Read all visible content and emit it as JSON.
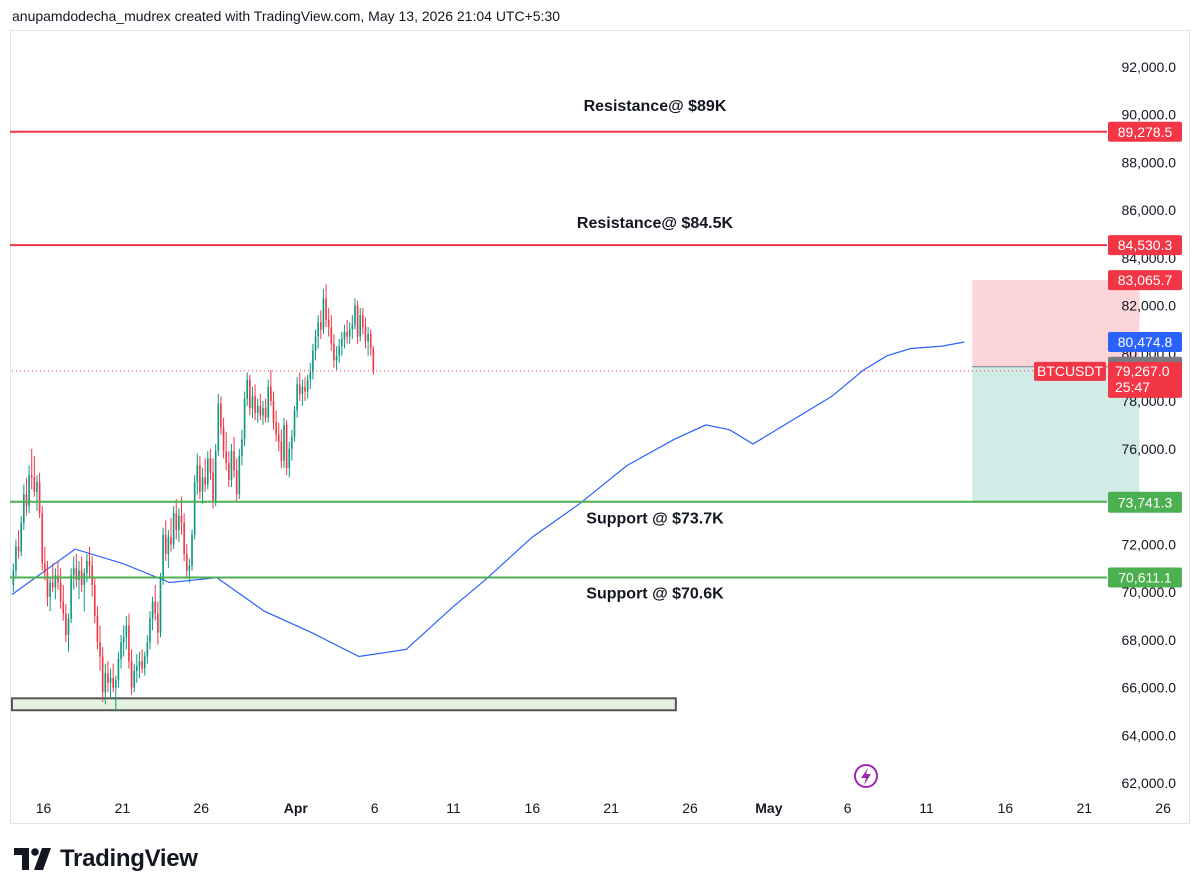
{
  "header": {
    "attribution": "anupamdodecha_mudrex created with TradingView.com, May 13, 2026 21:04 UTC+5:30"
  },
  "footer": {
    "brand": "TradingView"
  },
  "colors": {
    "up": "#089981",
    "down": "#f23645",
    "resistance": "#f23645",
    "support": "#4caf50",
    "ma": "#2962ff",
    "stop_zone": "#fcd5d9",
    "target_zone": "#d1ece6",
    "demand_zone": "#e4f2de"
  },
  "chart_data": {
    "type": "candlestick",
    "symbol": "BTCUSDT",
    "ylim": [
      61500,
      93500
    ],
    "xlim_days": [
      -2,
      67
    ],
    "x_ticks": [
      {
        "label": "16",
        "day": 0
      },
      {
        "label": "21",
        "day": 5
      },
      {
        "label": "26",
        "day": 10
      },
      {
        "label": "Apr",
        "day": 16,
        "bold": true
      },
      {
        "label": "6",
        "day": 21
      },
      {
        "label": "11",
        "day": 26
      },
      {
        "label": "16",
        "day": 31
      },
      {
        "label": "21",
        "day": 36
      },
      {
        "label": "26",
        "day": 41
      },
      {
        "label": "May",
        "day": 46,
        "bold": true
      },
      {
        "label": "6",
        "day": 51
      },
      {
        "label": "11",
        "day": 56
      },
      {
        "label": "16",
        "day": 61
      },
      {
        "label": "21",
        "day": 66
      },
      {
        "label": "26",
        "day": 71
      }
    ],
    "y_ticks": [
      {
        "value": 92000,
        "label": "92,000.0"
      },
      {
        "value": 90000,
        "label": "90,000.0"
      },
      {
        "value": 88000,
        "label": "88,000.0"
      },
      {
        "value": 86000,
        "label": "86,000.0"
      },
      {
        "value": 84000,
        "label": "84,000.0"
      },
      {
        "value": 82000,
        "label": "82,000.0"
      },
      {
        "value": 80000,
        "label": "80,000.0"
      },
      {
        "value": 78000,
        "label": "78,000.0"
      },
      {
        "value": 76000,
        "label": "76,000.0"
      },
      {
        "value": 74000,
        "label": "74,000.0"
      },
      {
        "value": 72000,
        "label": "72,000.0"
      },
      {
        "value": 70000,
        "label": "70,000.0"
      },
      {
        "value": 68000,
        "label": "68,000.0"
      },
      {
        "value": 66000,
        "label": "66,000.0"
      },
      {
        "value": 64000,
        "label": "64,000.0"
      },
      {
        "value": 62000,
        "label": "62,000.0"
      }
    ],
    "horizontal_levels": [
      {
        "name": "Resistance@ $89K",
        "value": 89278.5,
        "label": "89,278.5",
        "color": "#f23645",
        "text_at": 90350
      },
      {
        "name": "Resistance@ $84.5K",
        "value": 84530.3,
        "label": "84,530.3",
        "color": "#f23645",
        "text_at": 85450
      },
      {
        "name": "Support @ $73.7K",
        "value": 73780.9,
        "label": "73,780.9",
        "color": "#4caf50",
        "text_at": 73080
      },
      {
        "name": "Support @ $70.6K",
        "value": 70611.1,
        "label": "70,611.1",
        "color": "#4caf50",
        "text_at": 69930
      }
    ],
    "price_tags": [
      {
        "label": "83,065.7",
        "value": 83065.7,
        "color": "#f23645"
      },
      {
        "label": "80,474.8",
        "value": 80474.8,
        "color": "#2962ff"
      },
      {
        "label": "79,437.7",
        "value": 79437.7,
        "color": "#787b86"
      },
      {
        "label": "73,741.3",
        "value": 73741.3,
        "color": "#4caf50"
      }
    ],
    "last_price": {
      "symbol": "BTCUSDT",
      "label": "79,267.0",
      "value": 79267.0,
      "countdown": "25:47",
      "color": "#f23645"
    },
    "position_tool": {
      "day_start": 58.9,
      "day_end": 69.5,
      "stop": 83065.7,
      "entry": 79437.7,
      "target": 73780.9
    },
    "demand_zone": {
      "day_start": -2,
      "day_end": 40.1,
      "top": 65550,
      "bottom": 65050
    },
    "moving_average": [
      [
        -2.0,
        69900
      ],
      [
        2.0,
        71800
      ],
      [
        5.0,
        71200
      ],
      [
        8.0,
        70400
      ],
      [
        11.0,
        70600
      ],
      [
        14.0,
        69200
      ],
      [
        17.0,
        68300
      ],
      [
        20.0,
        67300
      ],
      [
        23.0,
        67600
      ],
      [
        26.0,
        69400
      ],
      [
        28.0,
        70500
      ],
      [
        31.0,
        72300
      ],
      [
        34.0,
        73700
      ],
      [
        37.0,
        75300
      ],
      [
        40.0,
        76400
      ],
      [
        42.0,
        77000
      ],
      [
        43.5,
        76800
      ],
      [
        45.0,
        76200
      ],
      [
        47.0,
        77000
      ],
      [
        50.0,
        78200
      ],
      [
        52.0,
        79300
      ],
      [
        53.5,
        79900
      ],
      [
        55.0,
        80200
      ],
      [
        57.0,
        80300
      ],
      [
        58.4,
        80474.8
      ]
    ],
    "candles": [
      {
        "o": 70300,
        "h": 71200,
        "l": 70000,
        "c": 70900
      },
      {
        "o": 70900,
        "h": 72200,
        "l": 70600,
        "c": 71900
      },
      {
        "o": 71900,
        "h": 72600,
        "l": 71400,
        "c": 71700
      },
      {
        "o": 71700,
        "h": 73200,
        "l": 71500,
        "c": 72900
      },
      {
        "o": 72900,
        "h": 74500,
        "l": 72600,
        "c": 74100
      },
      {
        "o": 74100,
        "h": 74800,
        "l": 73200,
        "c": 73600
      },
      {
        "o": 73600,
        "h": 75300,
        "l": 73300,
        "c": 74900
      },
      {
        "o": 74900,
        "h": 76000,
        "l": 74300,
        "c": 74800
      },
      {
        "o": 74800,
        "h": 75700,
        "l": 74000,
        "c": 74200
      },
      {
        "o": 74200,
        "h": 74900,
        "l": 73400,
        "c": 74600
      },
      {
        "o": 74600,
        "h": 75000,
        "l": 73100,
        "c": 73300
      },
      {
        "o": 73300,
        "h": 73600,
        "l": 70900,
        "c": 71200
      },
      {
        "o": 71200,
        "h": 71900,
        "l": 70500,
        "c": 70800
      },
      {
        "o": 70800,
        "h": 71300,
        "l": 69400,
        "c": 69800
      },
      {
        "o": 69800,
        "h": 70600,
        "l": 69200,
        "c": 70400
      },
      {
        "o": 70400,
        "h": 71200,
        "l": 70000,
        "c": 70200
      },
      {
        "o": 70200,
        "h": 71000,
        "l": 69700,
        "c": 70700
      },
      {
        "o": 70700,
        "h": 71300,
        "l": 70100,
        "c": 70400
      },
      {
        "o": 70400,
        "h": 71000,
        "l": 69300,
        "c": 69600
      },
      {
        "o": 69600,
        "h": 70300,
        "l": 68800,
        "c": 69100
      },
      {
        "o": 69100,
        "h": 69500,
        "l": 67900,
        "c": 68200
      },
      {
        "o": 68200,
        "h": 69100,
        "l": 67500,
        "c": 68900
      },
      {
        "o": 68900,
        "h": 71000,
        "l": 68700,
        "c": 70700
      },
      {
        "o": 70700,
        "h": 71500,
        "l": 70100,
        "c": 71000
      },
      {
        "o": 71000,
        "h": 71600,
        "l": 70200,
        "c": 70500
      },
      {
        "o": 70500,
        "h": 71300,
        "l": 69700,
        "c": 70900
      },
      {
        "o": 70900,
        "h": 71500,
        "l": 70000,
        "c": 70300
      },
      {
        "o": 70300,
        "h": 71000,
        "l": 69200,
        "c": 70800
      },
      {
        "o": 70800,
        "h": 71600,
        "l": 70400,
        "c": 71300
      },
      {
        "o": 71300,
        "h": 71900,
        "l": 70600,
        "c": 71100
      },
      {
        "o": 71100,
        "h": 71500,
        "l": 69800,
        "c": 70300
      },
      {
        "o": 70300,
        "h": 70600,
        "l": 68700,
        "c": 69000
      },
      {
        "o": 69000,
        "h": 69400,
        "l": 67600,
        "c": 67900
      },
      {
        "o": 67900,
        "h": 68600,
        "l": 66700,
        "c": 67300
      },
      {
        "o": 67300,
        "h": 67700,
        "l": 65400,
        "c": 65800
      },
      {
        "o": 65800,
        "h": 67000,
        "l": 65300,
        "c": 66600
      },
      {
        "o": 66600,
        "h": 67100,
        "l": 65800,
        "c": 66200
      },
      {
        "o": 66200,
        "h": 66800,
        "l": 65600,
        "c": 66400
      },
      {
        "o": 66400,
        "h": 67000,
        "l": 65800,
        "c": 66000
      },
      {
        "o": 66000,
        "h": 66500,
        "l": 65000,
        "c": 66300
      },
      {
        "o": 66300,
        "h": 67500,
        "l": 66000,
        "c": 67200
      },
      {
        "o": 67200,
        "h": 68200,
        "l": 66800,
        "c": 67900
      },
      {
        "o": 67900,
        "h": 68600,
        "l": 67300,
        "c": 68100
      },
      {
        "o": 68100,
        "h": 69000,
        "l": 67600,
        "c": 68600
      },
      {
        "o": 68600,
        "h": 69100,
        "l": 66800,
        "c": 67100
      },
      {
        "o": 67100,
        "h": 67600,
        "l": 65700,
        "c": 66000
      },
      {
        "o": 66000,
        "h": 67000,
        "l": 65800,
        "c": 66700
      },
      {
        "o": 66700,
        "h": 67400,
        "l": 66200,
        "c": 66900
      },
      {
        "o": 66900,
        "h": 67500,
        "l": 66400,
        "c": 67100
      },
      {
        "o": 67100,
        "h": 67600,
        "l": 66600,
        "c": 66800
      },
      {
        "o": 66800,
        "h": 67500,
        "l": 66500,
        "c": 67300
      },
      {
        "o": 67300,
        "h": 68200,
        "l": 67000,
        "c": 67900
      },
      {
        "o": 67900,
        "h": 69200,
        "l": 67600,
        "c": 68900
      },
      {
        "o": 68900,
        "h": 69800,
        "l": 68400,
        "c": 69600
      },
      {
        "o": 69600,
        "h": 70300,
        "l": 68800,
        "c": 69100
      },
      {
        "o": 69100,
        "h": 69600,
        "l": 67800,
        "c": 68300
      },
      {
        "o": 68300,
        "h": 70800,
        "l": 68100,
        "c": 70500
      },
      {
        "o": 70500,
        "h": 72700,
        "l": 70300,
        "c": 72400
      },
      {
        "o": 72400,
        "h": 73000,
        "l": 71300,
        "c": 71600
      },
      {
        "o": 71600,
        "h": 72600,
        "l": 71000,
        "c": 72300
      },
      {
        "o": 72300,
        "h": 73100,
        "l": 71700,
        "c": 72000
      },
      {
        "o": 72000,
        "h": 73600,
        "l": 71800,
        "c": 73300
      },
      {
        "o": 73300,
        "h": 73900,
        "l": 72200,
        "c": 72600
      },
      {
        "o": 72600,
        "h": 73500,
        "l": 72100,
        "c": 73200
      },
      {
        "o": 73200,
        "h": 74000,
        "l": 72400,
        "c": 72900
      },
      {
        "o": 72900,
        "h": 73300,
        "l": 71300,
        "c": 71600
      },
      {
        "o": 71600,
        "h": 72000,
        "l": 70600,
        "c": 70900
      },
      {
        "o": 70900,
        "h": 71400,
        "l": 70400,
        "c": 71100
      },
      {
        "o": 71100,
        "h": 72600,
        "l": 70900,
        "c": 72400
      },
      {
        "o": 72400,
        "h": 74900,
        "l": 72200,
        "c": 74600
      },
      {
        "o": 74600,
        "h": 75800,
        "l": 74100,
        "c": 75300
      },
      {
        "o": 75300,
        "h": 75700,
        "l": 73900,
        "c": 74200
      },
      {
        "o": 74200,
        "h": 75200,
        "l": 73700,
        "c": 74800
      },
      {
        "o": 74800,
        "h": 75600,
        "l": 74200,
        "c": 74500
      },
      {
        "o": 74500,
        "h": 75900,
        "l": 74300,
        "c": 75600
      },
      {
        "o": 75600,
        "h": 76000,
        "l": 74700,
        "c": 75000
      },
      {
        "o": 75000,
        "h": 75600,
        "l": 73500,
        "c": 73800
      },
      {
        "o": 73800,
        "h": 76200,
        "l": 73600,
        "c": 75900
      },
      {
        "o": 75900,
        "h": 78300,
        "l": 75700,
        "c": 77900
      },
      {
        "o": 77900,
        "h": 78200,
        "l": 76600,
        "c": 76900
      },
      {
        "o": 76900,
        "h": 77300,
        "l": 75600,
        "c": 75900
      },
      {
        "o": 75900,
        "h": 76700,
        "l": 75100,
        "c": 75400
      },
      {
        "o": 75400,
        "h": 75900,
        "l": 74400,
        "c": 74700
      },
      {
        "o": 74700,
        "h": 76200,
        "l": 74400,
        "c": 75900
      },
      {
        "o": 75900,
        "h": 76500,
        "l": 74800,
        "c": 75100
      },
      {
        "o": 75100,
        "h": 75600,
        "l": 73800,
        "c": 74100
      },
      {
        "o": 74100,
        "h": 76000,
        "l": 73900,
        "c": 75700
      },
      {
        "o": 75700,
        "h": 76800,
        "l": 75300,
        "c": 76400
      },
      {
        "o": 76400,
        "h": 78400,
        "l": 76100,
        "c": 78100
      },
      {
        "o": 78100,
        "h": 79200,
        "l": 77800,
        "c": 78900
      },
      {
        "o": 78900,
        "h": 79100,
        "l": 77400,
        "c": 77700
      },
      {
        "o": 77700,
        "h": 78600,
        "l": 77300,
        "c": 78200
      },
      {
        "o": 78200,
        "h": 78700,
        "l": 77200,
        "c": 77500
      },
      {
        "o": 77500,
        "h": 78100,
        "l": 77100,
        "c": 77800
      },
      {
        "o": 77800,
        "h": 78300,
        "l": 77200,
        "c": 77400
      },
      {
        "o": 77400,
        "h": 78000,
        "l": 77000,
        "c": 77700
      },
      {
        "o": 77700,
        "h": 78100,
        "l": 77100,
        "c": 77300
      },
      {
        "o": 77300,
        "h": 78900,
        "l": 77100,
        "c": 78600
      },
      {
        "o": 78600,
        "h": 79300,
        "l": 77800,
        "c": 78000
      },
      {
        "o": 78000,
        "h": 78400,
        "l": 76800,
        "c": 77100
      },
      {
        "o": 77100,
        "h": 77600,
        "l": 76300,
        "c": 76600
      },
      {
        "o": 76600,
        "h": 77100,
        "l": 75900,
        "c": 76300
      },
      {
        "o": 76300,
        "h": 76800,
        "l": 75200,
        "c": 75500
      },
      {
        "o": 75500,
        "h": 77300,
        "l": 75200,
        "c": 77000
      },
      {
        "o": 77000,
        "h": 77200,
        "l": 74900,
        "c": 75200
      },
      {
        "o": 75200,
        "h": 76300,
        "l": 74800,
        "c": 76000
      },
      {
        "o": 76000,
        "h": 76800,
        "l": 75500,
        "c": 76500
      },
      {
        "o": 76500,
        "h": 77800,
        "l": 76300,
        "c": 77600
      },
      {
        "o": 77600,
        "h": 79000,
        "l": 77300,
        "c": 78700
      },
      {
        "o": 78700,
        "h": 79200,
        "l": 78000,
        "c": 78300
      },
      {
        "o": 78300,
        "h": 78900,
        "l": 77800,
        "c": 78600
      },
      {
        "o": 78600,
        "h": 79000,
        "l": 78000,
        "c": 78400
      },
      {
        "o": 78400,
        "h": 79100,
        "l": 78100,
        "c": 78900
      },
      {
        "o": 78900,
        "h": 79600,
        "l": 78500,
        "c": 79200
      },
      {
        "o": 79200,
        "h": 80400,
        "l": 78900,
        "c": 80100
      },
      {
        "o": 80100,
        "h": 81000,
        "l": 79700,
        "c": 80700
      },
      {
        "o": 80700,
        "h": 81600,
        "l": 80200,
        "c": 81300
      },
      {
        "o": 81300,
        "h": 81800,
        "l": 80600,
        "c": 81000
      },
      {
        "o": 81000,
        "h": 82700,
        "l": 80800,
        "c": 82300
      },
      {
        "o": 82300,
        "h": 82900,
        "l": 81100,
        "c": 81400
      },
      {
        "o": 81400,
        "h": 81900,
        "l": 80700,
        "c": 81100
      },
      {
        "o": 81100,
        "h": 81600,
        "l": 80100,
        "c": 80400
      },
      {
        "o": 80400,
        "h": 80800,
        "l": 79400,
        "c": 79700
      },
      {
        "o": 79700,
        "h": 80300,
        "l": 79300,
        "c": 79900
      },
      {
        "o": 79900,
        "h": 80600,
        "l": 79600,
        "c": 80300
      },
      {
        "o": 80300,
        "h": 80900,
        "l": 79900,
        "c": 80600
      },
      {
        "o": 80600,
        "h": 81200,
        "l": 80200,
        "c": 80900
      },
      {
        "o": 80900,
        "h": 81400,
        "l": 80400,
        "c": 80700
      },
      {
        "o": 80700,
        "h": 81300,
        "l": 80400,
        "c": 81000
      },
      {
        "o": 81000,
        "h": 81600,
        "l": 80600,
        "c": 81200
      },
      {
        "o": 81200,
        "h": 82300,
        "l": 81000,
        "c": 82000
      },
      {
        "o": 82000,
        "h": 82200,
        "l": 80400,
        "c": 80700
      },
      {
        "o": 80700,
        "h": 81900,
        "l": 80500,
        "c": 81600
      },
      {
        "o": 81600,
        "h": 81900,
        "l": 80800,
        "c": 81100
      },
      {
        "o": 81100,
        "h": 81500,
        "l": 80200,
        "c": 80500
      },
      {
        "o": 80500,
        "h": 81100,
        "l": 79900,
        "c": 80800
      },
      {
        "o": 80800,
        "h": 81000,
        "l": 79900,
        "c": 80200
      },
      {
        "o": 80200,
        "h": 80300,
        "l": 79100,
        "c": 79267
      }
    ]
  }
}
